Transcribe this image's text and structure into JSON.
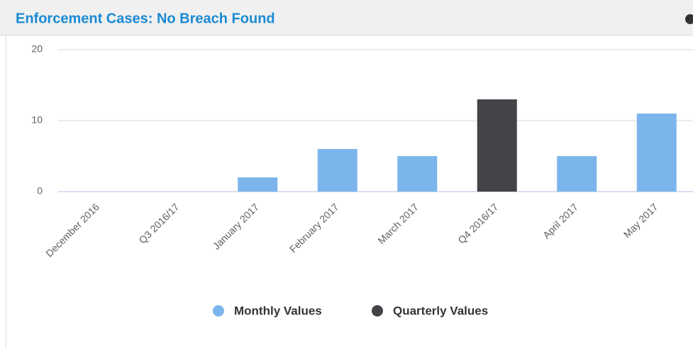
{
  "chart_data": {
    "type": "bar",
    "title": "Enforcement Cases: No Breach Found",
    "categories": [
      "December 2016",
      "Q3 2016/17",
      "January 2017",
      "February 2017",
      "March 2017",
      "Q4 2016/17",
      "April 2017",
      "May 2017"
    ],
    "series": [
      {
        "name": "Monthly Values",
        "color": "#7cb5ec",
        "values": [
          0,
          null,
          2,
          6,
          5,
          null,
          5,
          11
        ]
      },
      {
        "name": "Quarterly Values",
        "color": "#434348",
        "values": [
          null,
          0,
          null,
          null,
          null,
          13,
          null,
          null
        ]
      }
    ],
    "ylim": [
      0,
      20
    ],
    "yticks": [
      0,
      10,
      20
    ],
    "grid": true
  }
}
